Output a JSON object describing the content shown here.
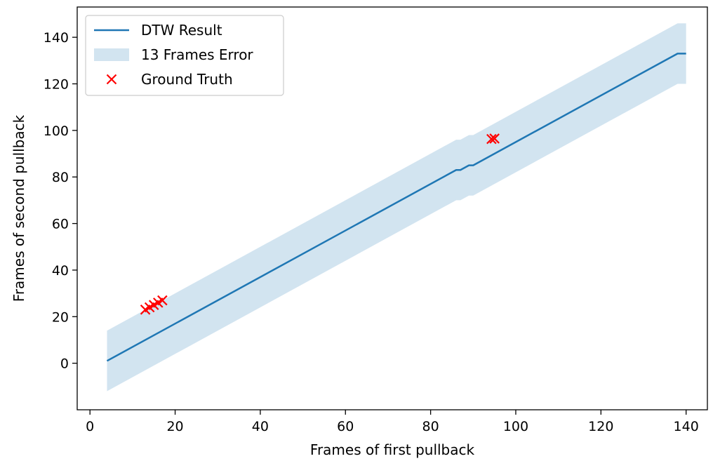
{
  "chart_data": {
    "type": "line",
    "title": "",
    "xlabel": "Frames of first pullback",
    "ylabel": "Frames of second pullback",
    "xlim": [
      -3,
      145
    ],
    "ylim": [
      -20,
      153
    ],
    "xticks": [
      0,
      20,
      40,
      60,
      80,
      100,
      120,
      140
    ],
    "yticks": [
      0,
      20,
      40,
      60,
      80,
      100,
      120,
      140
    ],
    "grid": false,
    "legend_placement": "upper-left",
    "error_band_half_width": 13,
    "series": [
      {
        "name": "DTW Result",
        "kind": "line",
        "color": "#1f77b4",
        "points": [
          [
            4,
            1
          ],
          [
            86,
            83
          ],
          [
            87,
            83
          ],
          [
            89,
            85
          ],
          [
            90,
            85
          ],
          [
            138,
            133
          ],
          [
            140,
            133
          ]
        ]
      },
      {
        "name": "13 Frames Error",
        "kind": "band",
        "color": "#1f77b4",
        "opacity": 0.2
      },
      {
        "name": "Ground Truth",
        "kind": "scatter",
        "marker": "x",
        "color": "#ff0000",
        "points": [
          [
            13,
            23
          ],
          [
            14,
            24
          ],
          [
            15,
            25
          ],
          [
            16,
            26
          ],
          [
            17,
            27
          ],
          [
            94.3,
            96.3
          ],
          [
            95,
            96.5
          ]
        ]
      }
    ]
  }
}
